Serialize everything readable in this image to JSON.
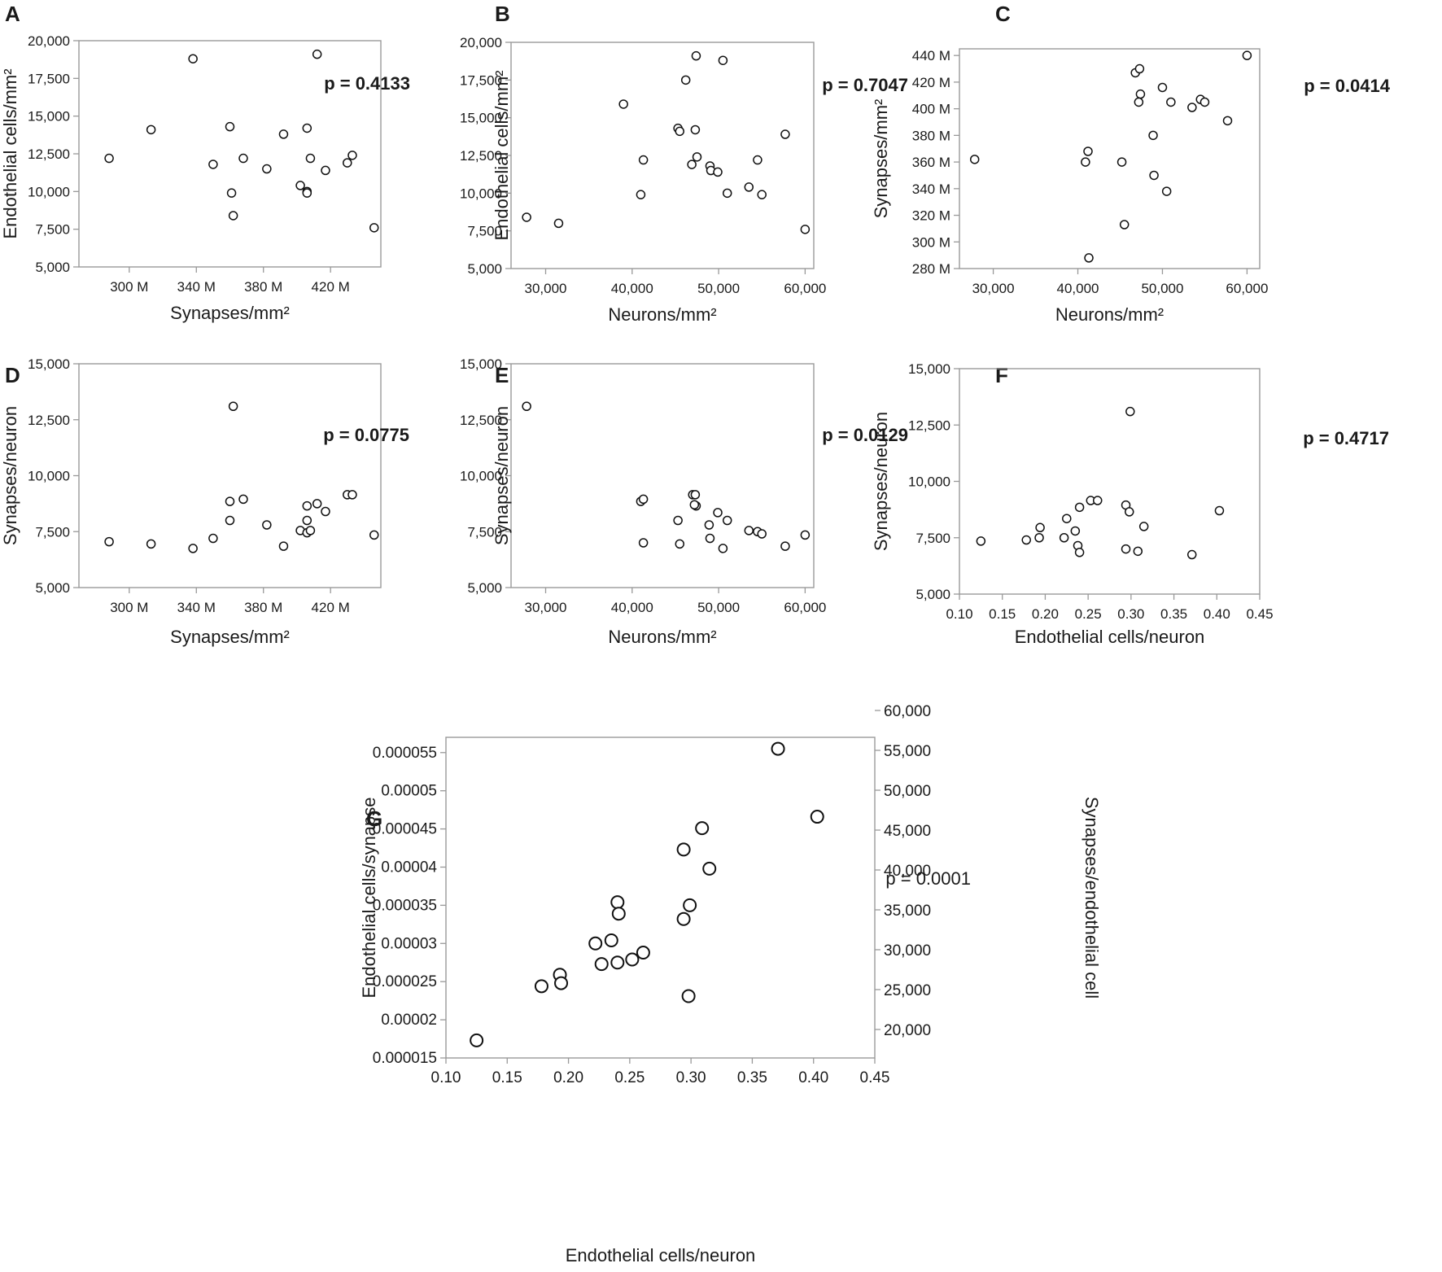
{
  "chart_data": [
    {
      "panel": "A",
      "type": "scatter",
      "xlabel": "Synapses/mm²",
      "ylabel": "Endothelial cells/mm²",
      "xlim": [
        270,
        450
      ],
      "ylim": [
        5000,
        20000
      ],
      "xticks": [
        300,
        340,
        380,
        420
      ],
      "xtick_labels": [
        "300 M",
        "340 M",
        "380 M",
        "420 M"
      ],
      "yticks": [
        5000,
        7500,
        10000,
        12500,
        15000,
        17500,
        20000
      ],
      "ytick_labels": [
        "5,000",
        "7,500",
        "10,000",
        "12,500",
        "15,000",
        "17,500",
        "20,000"
      ],
      "annotation": "p = 0.4133",
      "x": [
        288,
        313,
        338,
        350,
        360,
        361,
        362,
        368,
        382,
        392,
        402,
        406,
        406,
        406,
        408,
        412,
        417,
        430,
        433,
        446
      ],
      "y": [
        12200,
        14100,
        18800,
        11800,
        14300,
        9900,
        8400,
        12200,
        11500,
        13800,
        10400,
        14200,
        10000,
        9900,
        12200,
        19100,
        11400,
        11900,
        12400,
        7600
      ]
    },
    {
      "panel": "B",
      "type": "scatter",
      "xlabel": "Neurons/mm²",
      "ylabel": "Endothelial cells/mm²",
      "xlim": [
        26000,
        61000
      ],
      "ylim": [
        5000,
        20000
      ],
      "xticks": [
        30000,
        40000,
        50000,
        60000
      ],
      "xtick_labels": [
        "30,000",
        "40,000",
        "50,000",
        "60,000"
      ],
      "yticks": [
        5000,
        7500,
        10000,
        12500,
        15000,
        17500,
        20000
      ],
      "ytick_labels": [
        "5,000",
        "7,500",
        "10,000",
        "12,500",
        "15,000",
        "17,500",
        "20,000"
      ],
      "annotation": "p = 0.7047",
      "x": [
        27800,
        31500,
        39000,
        41000,
        41300,
        45300,
        45500,
        46200,
        46900,
        47300,
        47400,
        47500,
        49000,
        49100,
        49900,
        50500,
        51000,
        53500,
        54500,
        55000,
        57700,
        60000
      ],
      "y": [
        8400,
        8000,
        15900,
        9900,
        12200,
        14300,
        14100,
        17500,
        11900,
        14200,
        19100,
        12400,
        11800,
        11500,
        11400,
        18800,
        10000,
        10400,
        12200,
        9900,
        13900,
        7600
      ]
    },
    {
      "panel": "C",
      "type": "scatter",
      "xlabel": "Neurons/mm²",
      "ylabel": "Synapses/mm²",
      "xlim": [
        26000,
        61500
      ],
      "ylim": [
        280,
        445
      ],
      "xticks": [
        30000,
        40000,
        50000,
        60000
      ],
      "xtick_labels": [
        "30,000",
        "40,000",
        "50,000",
        "60,000"
      ],
      "yticks": [
        280,
        300,
        320,
        340,
        360,
        380,
        400,
        420,
        440
      ],
      "ytick_labels": [
        "280 M",
        "300 M",
        "320 M",
        "340 M",
        "360 M",
        "380 M",
        "400 M",
        "420 M",
        "440 M"
      ],
      "annotation": "p = 0.0414",
      "x": [
        27800,
        40900,
        41200,
        41300,
        45200,
        45500,
        46800,
        47300,
        47400,
        47200,
        48900,
        49000,
        50000,
        50500,
        51000,
        53500,
        54500,
        55000,
        57700,
        60000
      ],
      "y": [
        362,
        360,
        368,
        288,
        360,
        313,
        427,
        430,
        411,
        405,
        380,
        350,
        416,
        338,
        405,
        401,
        407,
        405,
        391,
        440
      ]
    },
    {
      "panel": "D",
      "type": "scatter",
      "xlabel": "Synapses/mm²",
      "ylabel": "Synapses/neuron",
      "xlim": [
        270,
        450
      ],
      "ylim": [
        5000,
        15000
      ],
      "xticks": [
        300,
        340,
        380,
        420
      ],
      "xtick_labels": [
        "300 M",
        "340 M",
        "380 M",
        "420 M"
      ],
      "yticks": [
        5000,
        7500,
        10000,
        12500,
        15000
      ],
      "ytick_labels": [
        "5,000",
        "7,500",
        "10,000",
        "12,500",
        "15,000"
      ],
      "annotation": "p = 0.0775",
      "x": [
        288,
        313,
        338,
        350,
        360,
        360,
        362,
        368,
        382,
        392,
        402,
        406,
        406,
        406,
        408,
        412,
        417,
        430,
        433,
        446
      ],
      "y": [
        7050,
        6950,
        6750,
        7200,
        8850,
        8000,
        13100,
        8950,
        7800,
        6850,
        7550,
        8650,
        8000,
        7450,
        7550,
        8750,
        8400,
        9150,
        9150,
        7350
      ]
    },
    {
      "panel": "E",
      "type": "scatter",
      "xlabel": "Neurons/mm²",
      "ylabel": "Synapses/neuron",
      "xlim": [
        26000,
        61000
      ],
      "ylim": [
        5000,
        15000
      ],
      "xticks": [
        30000,
        40000,
        50000,
        60000
      ],
      "xtick_labels": [
        "30,000",
        "40,000",
        "50,000",
        "60,000"
      ],
      "yticks": [
        5000,
        7500,
        10000,
        12500,
        15000
      ],
      "ytick_labels": [
        "5,000",
        "7,500",
        "10,000",
        "12,500",
        "15,000"
      ],
      "annotation": "p = 0.0129",
      "x": [
        27800,
        41000,
        41300,
        41300,
        45300,
        45500,
        47000,
        47300,
        47400,
        47200,
        48900,
        49000,
        49900,
        50500,
        51000,
        53500,
        54500,
        55000,
        57700,
        60000
      ],
      "y": [
        13100,
        8850,
        8950,
        7000,
        8000,
        6950,
        9150,
        9150,
        8650,
        8700,
        7800,
        7200,
        8350,
        6750,
        8000,
        7550,
        7500,
        7400,
        6850,
        7350
      ]
    },
    {
      "panel": "F",
      "type": "scatter",
      "xlabel": "Endothelial cells/neuron",
      "ylabel": "Synapses/neuron",
      "xlim": [
        0.1,
        0.45
      ],
      "ylim": [
        5000,
        15000
      ],
      "xticks": [
        0.1,
        0.15,
        0.2,
        0.25,
        0.3,
        0.35,
        0.4,
        0.45
      ],
      "xtick_labels": [
        "0.10",
        "0.15",
        "0.20",
        "0.25",
        "0.30",
        "0.35",
        "0.40",
        "0.45"
      ],
      "yticks": [
        5000,
        7500,
        10000,
        12500,
        15000
      ],
      "ytick_labels": [
        "5,000",
        "7,500",
        "10,000",
        "12,500",
        "15,000"
      ],
      "annotation": "p = 0.4717",
      "x": [
        0.125,
        0.178,
        0.193,
        0.194,
        0.222,
        0.225,
        0.235,
        0.238,
        0.24,
        0.24,
        0.253,
        0.261,
        0.294,
        0.294,
        0.298,
        0.299,
        0.308,
        0.315,
        0.371,
        0.403
      ],
      "y": [
        7350,
        7400,
        7500,
        7950,
        7500,
        8350,
        7800,
        7150,
        8850,
        6850,
        9150,
        9150,
        8950,
        7000,
        8650,
        13100,
        6900,
        8000,
        6750,
        8700
      ]
    },
    {
      "panel": "G",
      "type": "scatter",
      "xlabel": "Endothelial cells/neuron",
      "ylabel": "Endothelial cells/synapse",
      "y2label": "Synapses/endothelial cell",
      "xlim": [
        0.1,
        0.45
      ],
      "ylim": [
        1.5e-05,
        5.7e-05
      ],
      "xticks": [
        0.1,
        0.15,
        0.2,
        0.25,
        0.3,
        0.35,
        0.4,
        0.45
      ],
      "xtick_labels": [
        "0.10",
        "0.15",
        "0.20",
        "0.25",
        "0.30",
        "0.35",
        "0.40",
        "0.45"
      ],
      "yticks": [
        1.5e-05,
        2e-05,
        2.5e-05,
        3e-05,
        3.5e-05,
        4e-05,
        4.5e-05,
        5e-05,
        5.5e-05
      ],
      "ytick_labels": [
        "0.000015",
        "0.00002",
        "0.000025",
        "0.00003",
        "0.000035",
        "0.00004",
        "0.000045",
        "0.00005",
        "0.000055"
      ],
      "y2ticks": [
        20000,
        25000,
        30000,
        35000,
        40000,
        45000,
        50000,
        55000,
        60000
      ],
      "y2tick_labels": [
        "20,000",
        "25,000",
        "30,000",
        "35,000",
        "40,000",
        "45,000",
        "50,000",
        "55,000",
        "60,000"
      ],
      "annotation": "p = 0.0001",
      "x": [
        0.125,
        0.178,
        0.193,
        0.194,
        0.222,
        0.227,
        0.235,
        0.24,
        0.24,
        0.241,
        0.252,
        0.261,
        0.294,
        0.294,
        0.299,
        0.298,
        0.309,
        0.315,
        0.371,
        0.403
      ],
      "y": [
        1.73e-05,
        2.44e-05,
        2.59e-05,
        2.48e-05,
        3e-05,
        2.73e-05,
        3.04e-05,
        3.54e-05,
        2.75e-05,
        3.39e-05,
        2.79e-05,
        2.88e-05,
        4.23e-05,
        3.32e-05,
        3.5e-05,
        2.31e-05,
        4.51e-05,
        3.98e-05,
        5.55e-05,
        4.66e-05
      ]
    }
  ]
}
